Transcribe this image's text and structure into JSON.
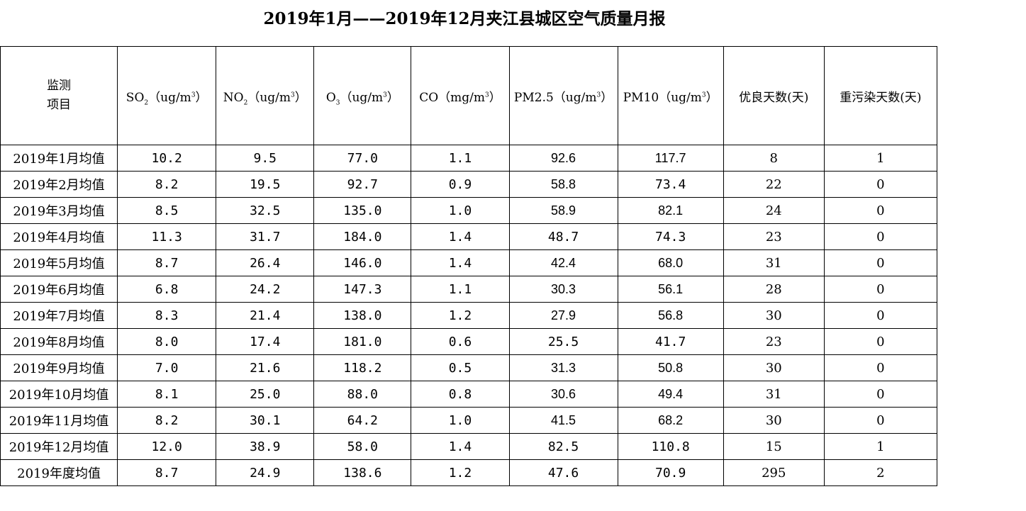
{
  "title": "2019年1月——2019年12月夹江县城区空气质量月报",
  "headers": {
    "item_line1": "监测",
    "item_line2": "项目",
    "so2_prefix": "SO",
    "so2_sub": "2",
    "so2_unit": "（ug/m",
    "so2_sup": "3",
    "so2_close": "）",
    "no2_prefix": "NO",
    "no2_sub": "2",
    "no2_unit": "（ug/m",
    "no2_sup": "3",
    "no2_close": "）",
    "o3_prefix": "O",
    "o3_sub": "3",
    "o3_unit": "（ug/m",
    "o3_sup": "3",
    "o3_close": "）",
    "co_prefix": "CO（mg/m",
    "co_sup": "3",
    "co_close": "）",
    "pm25_prefix": "PM2.5（ug/m",
    "pm25_sup": "3",
    "pm25_close": "）",
    "pm10_prefix": "PM10（ug/m",
    "pm10_sup": "3",
    "pm10_close": "）",
    "good_days": "优良天数(天)",
    "heavy_days": "重污染天数(天)"
  },
  "rows": [
    {
      "label": "2019年1月均值",
      "so2": "10.2",
      "no2": "9.5",
      "o3": "77.0",
      "co": "1.1",
      "pm25": "92.6",
      "pm10": "117.7",
      "good": "8",
      "heavy": "1"
    },
    {
      "label": "2019年2月均值",
      "so2": "8.2",
      "no2": "19.5",
      "o3": "92.7",
      "co": "0.9",
      "pm25": "58.8",
      "pm10": "73.4",
      "good": "22",
      "heavy": "0"
    },
    {
      "label": "2019年3月均值",
      "so2": "8.5",
      "no2": "32.5",
      "o3": "135.0",
      "co": "1.0",
      "pm25": "58.9",
      "pm10": "82.1",
      "good": "24",
      "heavy": "0"
    },
    {
      "label": "2019年4月均值",
      "so2": "11.3",
      "no2": "31.7",
      "o3": "184.0",
      "co": "1.4",
      "pm25": "48.7",
      "pm10": "74.3",
      "good": "23",
      "heavy": "0"
    },
    {
      "label": "2019年5月均值",
      "so2": "8.7",
      "no2": "26.4",
      "o3": "146.0",
      "co": "1.4",
      "pm25": "42.4",
      "pm10": "68.0",
      "good": "31",
      "heavy": "0"
    },
    {
      "label": "2019年6月均值",
      "so2": "6.8",
      "no2": "24.2",
      "o3": "147.3",
      "co": "1.1",
      "pm25": "30.3",
      "pm10": "56.1",
      "good": "28",
      "heavy": "0"
    },
    {
      "label": "2019年7月均值",
      "so2": "8.3",
      "no2": "21.4",
      "o3": "138.0",
      "co": "1.2",
      "pm25": "27.9",
      "pm10": "56.8",
      "good": "30",
      "heavy": "0"
    },
    {
      "label": "2019年8月均值",
      "so2": "8.0",
      "no2": "17.4",
      "o3": "181.0",
      "co": "0.6",
      "pm25": "25.5",
      "pm10": "41.7",
      "good": "23",
      "heavy": "0"
    },
    {
      "label": "2019年9月均值",
      "so2": "7.0",
      "no2": "21.6",
      "o3": "118.2",
      "co": "0.5",
      "pm25": "31.3",
      "pm10": "50.8",
      "good": "30",
      "heavy": "0"
    },
    {
      "label": "2019年10月均值",
      "so2": "8.1",
      "no2": "25.0",
      "o3": "88.0",
      "co": "0.8",
      "pm25": "30.6",
      "pm10": "49.4",
      "good": "31",
      "heavy": "0"
    },
    {
      "label": "2019年11月均值",
      "so2": "8.2",
      "no2": "30.1",
      "o3": "64.2",
      "co": "1.0",
      "pm25": "41.5",
      "pm10": "68.2",
      "good": "30",
      "heavy": "0"
    },
    {
      "label": "2019年12月均值",
      "so2": "12.0",
      "no2": "38.9",
      "o3": "58.0",
      "co": "1.4",
      "pm25": "82.5",
      "pm10": "110.8",
      "good": "15",
      "heavy": "1"
    },
    {
      "label": "2019年度均值",
      "so2": "8.7",
      "no2": "24.9",
      "o3": "138.6",
      "co": "1.2",
      "pm25": "47.6",
      "pm10": "70.9",
      "good": "295",
      "heavy": "2"
    }
  ],
  "row_fonts": [
    {
      "pm25": "sans",
      "pm10": "sans"
    },
    {
      "pm25": "sans",
      "pm10": "mono"
    },
    {
      "pm25": "sans",
      "pm10": "sans"
    },
    {
      "pm25": "mono",
      "pm10": "mono"
    },
    {
      "pm25": "sans",
      "pm10": "sans"
    },
    {
      "pm25": "sans",
      "pm10": "sans"
    },
    {
      "pm25": "sans",
      "pm10": "sans"
    },
    {
      "pm25": "mono",
      "pm10": "mono"
    },
    {
      "pm25": "sans",
      "pm10": "sans"
    },
    {
      "pm25": "sans",
      "pm10": "sans"
    },
    {
      "pm25": "sans",
      "pm10": "sans"
    },
    {
      "pm25": "mono",
      "pm10": "mono"
    },
    {
      "pm25": "mono",
      "pm10": "mono"
    }
  ]
}
